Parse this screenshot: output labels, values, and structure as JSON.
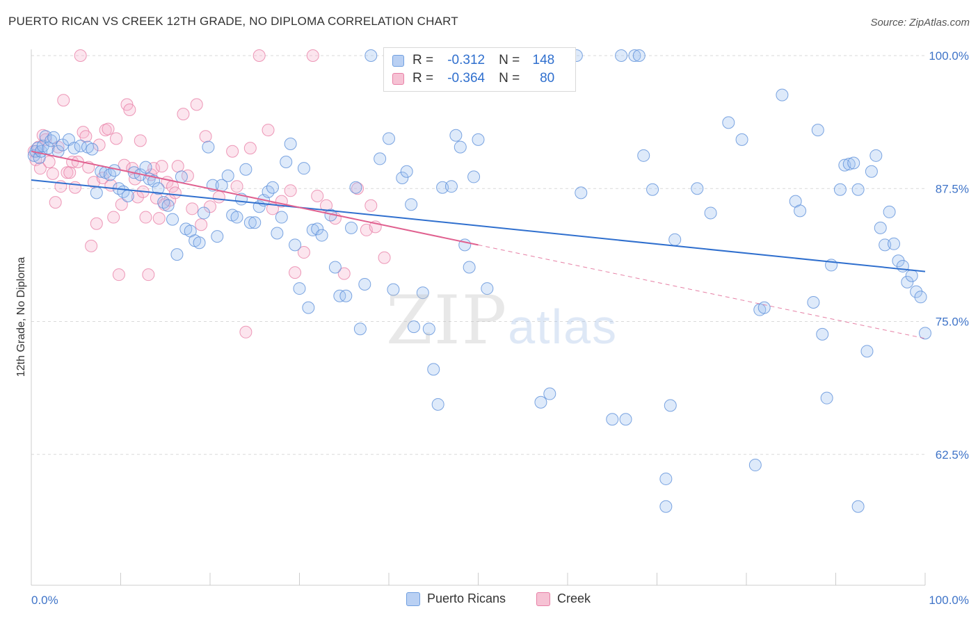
{
  "title": "PUERTO RICAN VS CREEK 12TH GRADE, NO DIPLOMA CORRELATION CHART",
  "source": "Source: ZipAtlas.com",
  "stats": [
    {
      "r_label": "R =",
      "r_value": "-0.312",
      "n_label": "N =",
      "n_value": "148",
      "color": "#6f9fe0",
      "fill": "#b9d0f3"
    },
    {
      "r_label": "R =",
      "r_value": "-0.364",
      "n_label": "N =",
      "n_value": "80",
      "color": "#e87fa6",
      "fill": "#f6c2d4"
    }
  ],
  "legend": [
    {
      "label": "Puerto Ricans",
      "color": "#6f9fe0",
      "fill": "#b9d0f3"
    },
    {
      "label": "Creek",
      "color": "#e87fa6",
      "fill": "#f6c2d4"
    }
  ],
  "watermark": {
    "zip": "ZIP",
    "atlas": "atlas"
  },
  "chart_data": {
    "type": "scatter",
    "title": "PUERTO RICAN VS CREEK 12TH GRADE, NO DIPLOMA CORRELATION CHART",
    "xlabel": "",
    "ylabel": "12th Grade, No Diploma",
    "xlim": [
      0,
      100
    ],
    "ylim": [
      50,
      100
    ],
    "x_tick_labels": [
      "0.0%",
      "100.0%"
    ],
    "y_ticks": [
      62.5,
      75.0,
      87.5,
      100.0
    ],
    "y_tick_labels": [
      "62.5%",
      "75.0%",
      "87.5%",
      "100.0%"
    ],
    "grid": true,
    "legend_position": "bottom-center",
    "series": [
      {
        "name": "Puerto Ricans",
        "color": "#5b8fd9",
        "line_color": "#2f6fce",
        "trend": {
          "x": [
            0,
            100
          ],
          "y": [
            88.3,
            79.7
          ]
        },
        "points": [
          [
            0.3,
            90.6
          ],
          [
            0.5,
            91.0
          ],
          [
            0.7,
            91.3
          ],
          [
            0.9,
            90.4
          ],
          [
            1.1,
            91.0
          ],
          [
            1.3,
            91.5
          ],
          [
            1.6,
            92.4
          ],
          [
            1.9,
            91.3
          ],
          [
            2.2,
            92.0
          ],
          [
            2.5,
            92.3
          ],
          [
            3.0,
            91.0
          ],
          [
            3.5,
            91.6
          ],
          [
            4.2,
            92.1
          ],
          [
            4.8,
            91.3
          ],
          [
            5.5,
            91.5
          ],
          [
            6.3,
            91.4
          ],
          [
            6.8,
            91.2
          ],
          [
            7.3,
            87.1
          ],
          [
            7.8,
            89.1
          ],
          [
            8.3,
            89.0
          ],
          [
            8.8,
            88.8
          ],
          [
            9.3,
            89.2
          ],
          [
            9.8,
            87.5
          ],
          [
            10.3,
            87.2
          ],
          [
            10.8,
            86.8
          ],
          [
            11.5,
            89.0
          ],
          [
            12.2,
            88.8
          ],
          [
            12.8,
            89.5
          ],
          [
            13.2,
            88.4
          ],
          [
            13.7,
            88.2
          ],
          [
            14.2,
            87.5
          ],
          [
            14.8,
            86.2
          ],
          [
            15.3,
            85.9
          ],
          [
            15.8,
            84.6
          ],
          [
            16.3,
            81.3
          ],
          [
            16.8,
            88.6
          ],
          [
            17.3,
            83.7
          ],
          [
            17.8,
            83.5
          ],
          [
            18.3,
            82.6
          ],
          [
            18.8,
            82.4
          ],
          [
            19.3,
            85.2
          ],
          [
            19.8,
            91.4
          ],
          [
            20.3,
            87.8
          ],
          [
            20.8,
            83.0
          ],
          [
            21.3,
            87.8
          ],
          [
            22.0,
            88.7
          ],
          [
            22.5,
            85.0
          ],
          [
            23.0,
            84.8
          ],
          [
            23.5,
            86.5
          ],
          [
            24.0,
            89.3
          ],
          [
            24.5,
            84.3
          ],
          [
            25.0,
            84.3
          ],
          [
            25.5,
            85.8
          ],
          [
            26.0,
            86.4
          ],
          [
            26.5,
            87.2
          ],
          [
            27.0,
            87.6
          ],
          [
            27.5,
            83.3
          ],
          [
            28.0,
            84.8
          ],
          [
            28.5,
            90.0
          ],
          [
            29.0,
            91.7
          ],
          [
            29.5,
            82.2
          ],
          [
            30.0,
            78.1
          ],
          [
            30.5,
            89.4
          ],
          [
            31.0,
            76.3
          ],
          [
            31.5,
            83.6
          ],
          [
            32.0,
            83.7
          ],
          [
            32.5,
            83.1
          ],
          [
            33.5,
            85.0
          ],
          [
            34.0,
            80.1
          ],
          [
            34.5,
            77.4
          ],
          [
            35.2,
            77.4
          ],
          [
            35.8,
            83.8
          ],
          [
            36.3,
            87.6
          ],
          [
            36.8,
            74.3
          ],
          [
            37.3,
            78.5
          ],
          [
            38.0,
            100.0
          ],
          [
            39.0,
            90.3
          ],
          [
            40.0,
            92.2
          ],
          [
            40.5,
            78.0
          ],
          [
            41.5,
            88.5
          ],
          [
            42.0,
            89.1
          ],
          [
            42.5,
            86.0
          ],
          [
            42.8,
            74.5
          ],
          [
            43.8,
            77.7
          ],
          [
            44.5,
            74.3
          ],
          [
            45.0,
            70.5
          ],
          [
            45.5,
            67.2
          ],
          [
            46.0,
            87.6
          ],
          [
            47.0,
            87.7
          ],
          [
            47.5,
            92.5
          ],
          [
            48.0,
            91.4
          ],
          [
            48.5,
            82.2
          ],
          [
            49.0,
            80.1
          ],
          [
            49.5,
            88.6
          ],
          [
            50.0,
            92.1
          ],
          [
            51.0,
            78.1
          ],
          [
            55.5,
            100.0
          ],
          [
            56.0,
            100.0
          ],
          [
            57.0,
            67.4
          ],
          [
            58.0,
            68.2
          ],
          [
            60.0,
            100.0
          ],
          [
            61.0,
            100.0
          ],
          [
            61.5,
            87.1
          ],
          [
            65.0,
            65.8
          ],
          [
            66.0,
            100.0
          ],
          [
            66.5,
            65.8
          ],
          [
            67.5,
            100.0
          ],
          [
            68.0,
            100.0
          ],
          [
            68.5,
            90.6
          ],
          [
            69.5,
            87.4
          ],
          [
            71.0,
            60.2
          ],
          [
            71.5,
            67.1
          ],
          [
            72.0,
            82.7
          ],
          [
            74.5,
            87.5
          ],
          [
            76.0,
            85.2
          ],
          [
            78.0,
            93.7
          ],
          [
            79.5,
            92.1
          ],
          [
            81.0,
            61.5
          ],
          [
            81.5,
            76.1
          ],
          [
            82.0,
            76.3
          ],
          [
            84.0,
            96.3
          ],
          [
            85.5,
            86.3
          ],
          [
            86.0,
            85.4
          ],
          [
            87.5,
            76.8
          ],
          [
            88.0,
            93.0
          ],
          [
            88.5,
            73.8
          ],
          [
            89.0,
            67.8
          ],
          [
            89.5,
            80.3
          ],
          [
            90.5,
            87.4
          ],
          [
            91.0,
            89.7
          ],
          [
            91.5,
            89.8
          ],
          [
            92.0,
            89.9
          ],
          [
            92.5,
            87.4
          ],
          [
            93.5,
            72.2
          ],
          [
            94.0,
            89.1
          ],
          [
            94.5,
            90.6
          ],
          [
            95.0,
            83.8
          ],
          [
            95.5,
            82.2
          ],
          [
            96.0,
            85.3
          ],
          [
            96.5,
            82.3
          ],
          [
            97.0,
            80.7
          ],
          [
            97.5,
            80.2
          ],
          [
            98.0,
            78.7
          ],
          [
            98.5,
            79.3
          ],
          [
            99.0,
            77.8
          ],
          [
            99.5,
            77.3
          ],
          [
            100.0,
            73.9
          ],
          [
            71.0,
            57.6
          ],
          [
            92.5,
            57.6
          ]
        ]
      },
      {
        "name": "Creek",
        "color": "#e87fa6",
        "line_color": "#e0608f",
        "trend": {
          "x": [
            0,
            50
          ],
          "y": [
            91.0,
            82.2
          ]
        },
        "trend_extension": {
          "x": [
            50,
            100
          ],
          "y": [
            82.2,
            73.4
          ]
        },
        "points": [
          [
            0.3,
            91.0
          ],
          [
            0.5,
            90.2
          ],
          [
            0.8,
            91.4
          ],
          [
            1.0,
            89.4
          ],
          [
            1.3,
            92.5
          ],
          [
            1.6,
            92.1
          ],
          [
            2.0,
            90.0
          ],
          [
            2.4,
            88.9
          ],
          [
            2.7,
            86.2
          ],
          [
            3.0,
            91.4
          ],
          [
            3.3,
            87.7
          ],
          [
            3.6,
            95.8
          ],
          [
            4.0,
            89.0
          ],
          [
            4.3,
            89.0
          ],
          [
            4.6,
            90.0
          ],
          [
            4.9,
            87.6
          ],
          [
            5.2,
            90.0
          ],
          [
            5.5,
            100.0
          ],
          [
            5.8,
            92.8
          ],
          [
            6.1,
            92.4
          ],
          [
            6.4,
            89.5
          ],
          [
            6.7,
            82.1
          ],
          [
            7.0,
            88.1
          ],
          [
            7.3,
            84.2
          ],
          [
            7.6,
            91.6
          ],
          [
            8.0,
            88.5
          ],
          [
            8.3,
            93.0
          ],
          [
            8.6,
            93.1
          ],
          [
            8.9,
            87.8
          ],
          [
            9.2,
            84.8
          ],
          [
            9.5,
            92.2
          ],
          [
            9.8,
            79.4
          ],
          [
            10.1,
            86.0
          ],
          [
            10.4,
            89.7
          ],
          [
            10.7,
            95.4
          ],
          [
            11.0,
            94.9
          ],
          [
            11.3,
            89.4
          ],
          [
            11.6,
            88.4
          ],
          [
            11.9,
            86.7
          ],
          [
            12.2,
            92.0
          ],
          [
            12.5,
            87.2
          ],
          [
            12.8,
            84.8
          ],
          [
            13.1,
            79.4
          ],
          [
            13.4,
            88.8
          ],
          [
            13.7,
            89.4
          ],
          [
            14.0,
            86.6
          ],
          [
            14.3,
            84.7
          ],
          [
            14.6,
            89.6
          ],
          [
            14.9,
            86.0
          ],
          [
            15.2,
            88.1
          ],
          [
            15.5,
            86.4
          ],
          [
            15.8,
            87.7
          ],
          [
            16.1,
            87.1
          ],
          [
            16.4,
            89.6
          ],
          [
            17.0,
            94.5
          ],
          [
            17.5,
            88.7
          ],
          [
            18.0,
            85.6
          ],
          [
            18.5,
            95.4
          ],
          [
            19.0,
            84.1
          ],
          [
            19.5,
            92.4
          ],
          [
            20.0,
            85.8
          ],
          [
            21.0,
            86.7
          ],
          [
            22.5,
            91.0
          ],
          [
            23.0,
            87.7
          ],
          [
            24.0,
            74.0
          ],
          [
            24.5,
            91.3
          ],
          [
            25.5,
            100.0
          ],
          [
            26.5,
            93.0
          ],
          [
            27.0,
            85.6
          ],
          [
            28.0,
            86.3
          ],
          [
            29.0,
            87.3
          ],
          [
            29.5,
            79.6
          ],
          [
            30.5,
            81.5
          ],
          [
            31.5,
            100.0
          ],
          [
            32.0,
            86.8
          ],
          [
            33.0,
            85.9
          ],
          [
            34.0,
            84.7
          ],
          [
            35.0,
            79.5
          ],
          [
            36.5,
            87.5
          ],
          [
            37.5,
            83.6
          ],
          [
            38.0,
            85.9
          ],
          [
            38.5,
            83.9
          ],
          [
            39.5,
            81.0
          ]
        ]
      }
    ]
  }
}
